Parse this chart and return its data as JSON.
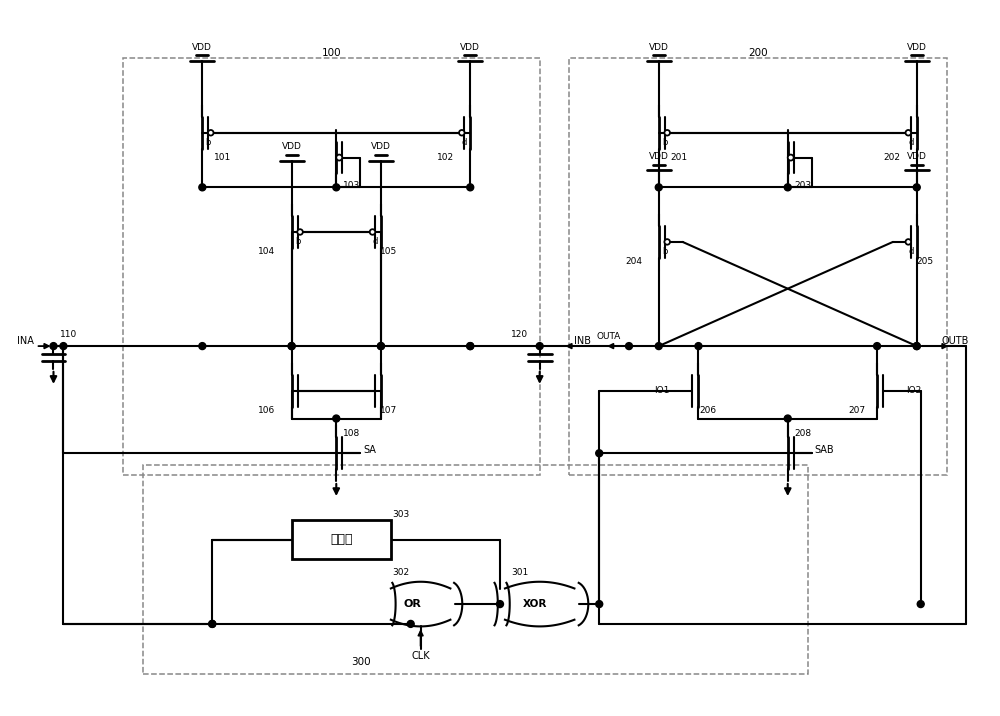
{
  "bg": "#ffffff",
  "lc": "#000000",
  "figsize": [
    10.0,
    7.16
  ],
  "dpi": 100,
  "xlim": [
    0,
    100
  ],
  "ylim": [
    0,
    71.6
  ]
}
